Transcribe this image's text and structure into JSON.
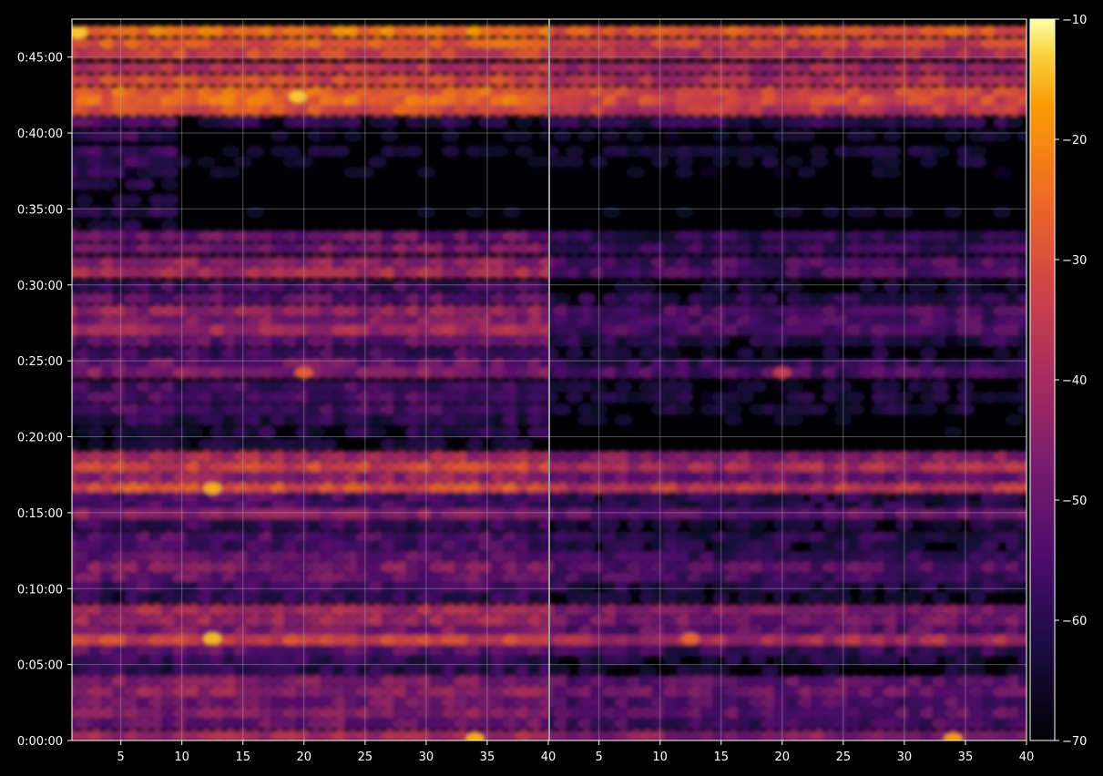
{
  "chart_data": {
    "type": "heatmap",
    "title": "",
    "xlabel": "",
    "ylabel": "",
    "panels": [
      {
        "name": "",
        "xlim": [
          1,
          40
        ]
      },
      {
        "name": "",
        "xlim": [
          1,
          40
        ]
      }
    ],
    "x_tick_values": [
      5,
      10,
      15,
      20,
      25,
      30,
      35,
      40
    ],
    "x_tick_labels": [
      "5",
      "10",
      "15",
      "20",
      "25",
      "30",
      "35",
      "40"
    ],
    "y_tick_labels": [
      "0:00:00",
      "0:05:00",
      "0:10:00",
      "0:15:00",
      "0:20:00",
      "0:25:00",
      "0:30:00",
      "0:35:00",
      "0:40:00",
      "0:45:00"
    ],
    "y_range_minutes": [
      0,
      47.5
    ],
    "colorbar": {
      "colormap": "inferno",
      "range": [
        -70,
        -10
      ],
      "ticks": [
        -70,
        -60,
        -50,
        -40,
        -30,
        -20,
        -10
      ],
      "tick_labels": [
        "−70",
        "−60",
        "−50",
        "−40",
        "−30",
        "−20",
        "−10"
      ]
    },
    "grid": true,
    "background": "#000000",
    "bands_minutes_db": [
      {
        "y": 46.7,
        "db": -23
      },
      {
        "y": 45.9,
        "db": -28
      },
      {
        "y": 45.2,
        "db": -32
      },
      {
        "y": 44.3,
        "db": -36
      },
      {
        "y": 43.5,
        "db": -32
      },
      {
        "y": 42.7,
        "db": -26
      },
      {
        "y": 42.1,
        "db": -25
      },
      {
        "y": 41.5,
        "db": -30
      },
      {
        "y": 40.7,
        "db": -52
      },
      {
        "y": 39.8,
        "db": -58
      },
      {
        "y": 38.8,
        "db": -56
      },
      {
        "y": 38.1,
        "db": -58
      },
      {
        "y": 37.4,
        "db": -60
      },
      {
        "y": 36.6,
        "db": -63
      },
      {
        "y": 35.6,
        "db": -63
      },
      {
        "y": 34.8,
        "db": -60
      },
      {
        "y": 33.9,
        "db": -64
      },
      {
        "y": 33.2,
        "db": -50
      },
      {
        "y": 32.4,
        "db": -48
      },
      {
        "y": 31.5,
        "db": -44
      },
      {
        "y": 30.8,
        "db": -40
      },
      {
        "y": 29.9,
        "db": -56
      },
      {
        "y": 29.1,
        "db": -52
      },
      {
        "y": 28.3,
        "db": -43
      },
      {
        "y": 27.6,
        "db": -46
      },
      {
        "y": 27.0,
        "db": -40
      },
      {
        "y": 26.3,
        "db": -52
      },
      {
        "y": 25.5,
        "db": -56
      },
      {
        "y": 24.8,
        "db": -50
      },
      {
        "y": 24.2,
        "db": -46
      },
      {
        "y": 23.3,
        "db": -56
      },
      {
        "y": 22.6,
        "db": -55
      },
      {
        "y": 21.8,
        "db": -56
      },
      {
        "y": 21.1,
        "db": -60
      },
      {
        "y": 20.3,
        "db": -62
      },
      {
        "y": 19.5,
        "db": -64
      },
      {
        "y": 18.7,
        "db": -40
      },
      {
        "y": 18.0,
        "db": -33
      },
      {
        "y": 17.3,
        "db": -44
      },
      {
        "y": 16.6,
        "db": -30
      },
      {
        "y": 16.0,
        "db": -55
      },
      {
        "y": 15.4,
        "db": -55
      },
      {
        "y": 14.9,
        "db": -45
      },
      {
        "y": 14.2,
        "db": -58
      },
      {
        "y": 13.4,
        "db": -54
      },
      {
        "y": 12.8,
        "db": -56
      },
      {
        "y": 12.1,
        "db": -52
      },
      {
        "y": 11.4,
        "db": -47
      },
      {
        "y": 10.7,
        "db": -50
      },
      {
        "y": 10.1,
        "db": -56
      },
      {
        "y": 9.4,
        "db": -60
      },
      {
        "y": 8.6,
        "db": -40
      },
      {
        "y": 7.9,
        "db": -42
      },
      {
        "y": 7.2,
        "db": -47
      },
      {
        "y": 6.6,
        "db": -33
      },
      {
        "y": 5.9,
        "db": -52
      },
      {
        "y": 5.3,
        "db": -58
      },
      {
        "y": 4.6,
        "db": -60
      },
      {
        "y": 3.9,
        "db": -46
      },
      {
        "y": 3.2,
        "db": -44
      },
      {
        "y": 2.5,
        "db": -48
      },
      {
        "y": 1.8,
        "db": -46
      },
      {
        "y": 1.1,
        "db": -50
      },
      {
        "y": 0.3,
        "db": -40
      }
    ],
    "hotspots_db": [
      {
        "panel": 0,
        "x": 1.5,
        "y": 46.6,
        "db": -14
      },
      {
        "panel": 0,
        "x": 19.5,
        "y": 42.4,
        "db": -14
      },
      {
        "panel": 0,
        "x": 12.5,
        "y": 16.6,
        "db": -16
      },
      {
        "panel": 0,
        "x": 12.5,
        "y": 6.7,
        "db": -15
      },
      {
        "panel": 0,
        "x": 34,
        "y": 0.1,
        "db": -16
      },
      {
        "panel": 0,
        "x": 20,
        "y": 24.2,
        "db": -28
      },
      {
        "panel": 1,
        "x": 34,
        "y": 0.1,
        "db": -18
      },
      {
        "panel": 1,
        "x": 12.5,
        "y": 6.7,
        "db": -26
      },
      {
        "panel": 1,
        "x": 20,
        "y": 24.2,
        "db": -35
      }
    ]
  }
}
